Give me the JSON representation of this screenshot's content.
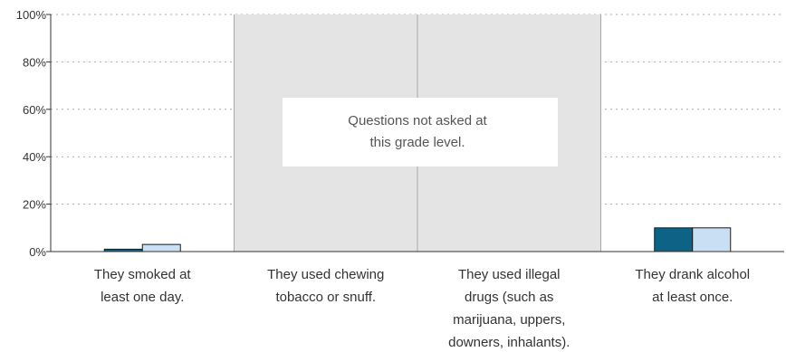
{
  "chart_data": {
    "type": "bar",
    "categories": [
      [
        "They smoked at",
        "least one day."
      ],
      [
        "They used chewing",
        "tobacco or snuff."
      ],
      [
        "They used illegal",
        "drugs (such as",
        "marijuana, uppers,",
        "downers, inhalants)."
      ],
      [
        "They drank alcohol",
        "at least once."
      ]
    ],
    "series": [
      {
        "values": [
          1,
          null,
          null,
          10
        ]
      },
      {
        "values": [
          3,
          null,
          null,
          10
        ]
      }
    ],
    "y_ticks": [
      "0%",
      "20%",
      "40%",
      "60%",
      "80%",
      "100%"
    ],
    "ylim": [
      0,
      100
    ],
    "grid": true,
    "not_asked": {
      "categories": [
        1,
        2
      ],
      "text": [
        "Questions not asked at",
        "this grade level."
      ]
    },
    "colors": {
      "series": [
        "#0c6385",
        "#c9dff3"
      ],
      "not_asked_fill": "#e4e4e4",
      "grid": "#aaaaaa",
      "axis": "#333333"
    }
  }
}
